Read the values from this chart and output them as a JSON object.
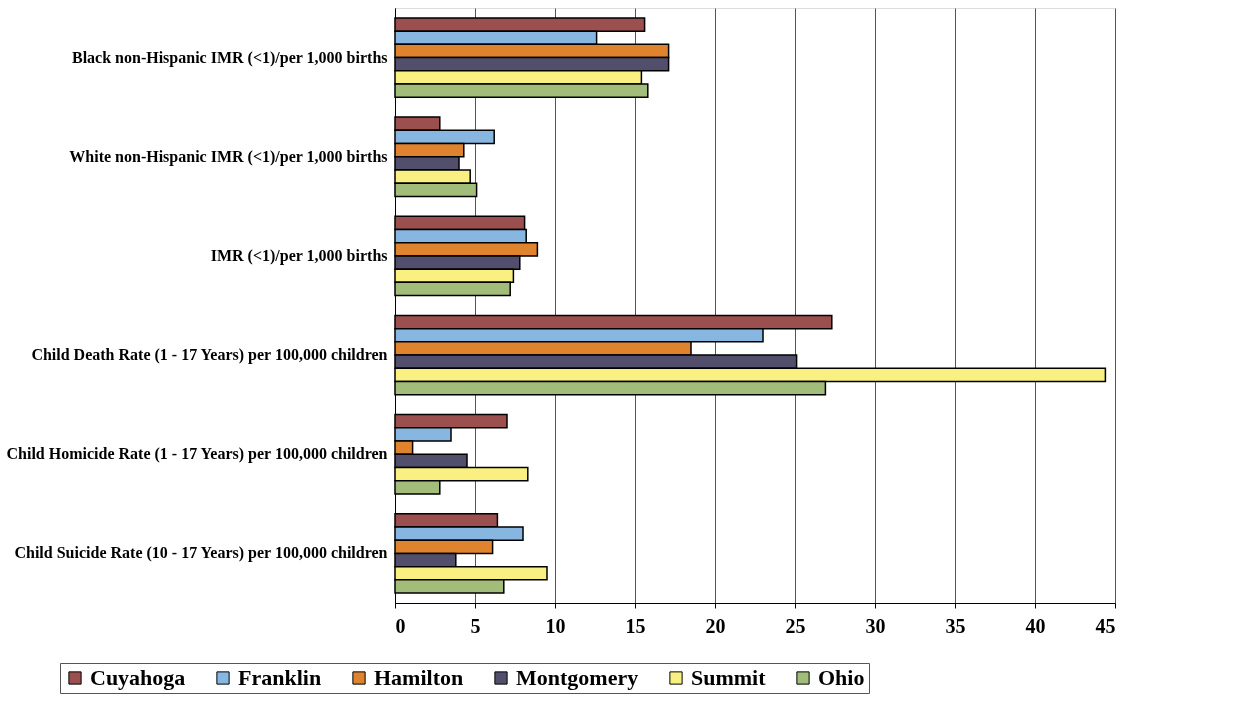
{
  "chart_data": {
    "type": "bar",
    "orientation": "horizontal",
    "categories": [
      "Black non-Hispanic IMR (<1)/per 1,000 births",
      "White non-Hispanic IMR (<1)/per 1,000 births",
      "IMR (<1)/per 1,000 births",
      "Child Death Rate (1 - 17 Years) per 100,000 children",
      "Child Homicide Rate (1 - 17 Years) per 100,000 children",
      "Child Suicide Rate (10 - 17 Years) per 100,000 children"
    ],
    "series": [
      {
        "name": "Cuyahoga",
        "color": "#9b4f4f",
        "values": [
          15.6,
          2.8,
          8.1,
          27.3,
          7.0,
          6.4
        ]
      },
      {
        "name": "Franklin",
        "color": "#87b7e0",
        "values": [
          12.6,
          6.2,
          8.2,
          23.0,
          3.5,
          8.0
        ]
      },
      {
        "name": "Hamilton",
        "color": "#e0832f",
        "values": [
          17.1,
          4.3,
          8.9,
          18.5,
          1.1,
          6.1
        ]
      },
      {
        "name": "Montgomery",
        "color": "#524f6c",
        "values": [
          17.1,
          4.0,
          7.8,
          25.1,
          4.5,
          3.8
        ]
      },
      {
        "name": "Summit",
        "color": "#faf082",
        "values": [
          15.4,
          4.7,
          7.4,
          44.4,
          8.3,
          9.5
        ]
      },
      {
        "name": "Ohio",
        "color": "#a2bd79",
        "values": [
          15.8,
          5.1,
          7.2,
          26.9,
          2.8,
          6.8
        ]
      }
    ],
    "xlim": [
      0,
      45
    ],
    "xticks": [
      0,
      5,
      10,
      15,
      20,
      25,
      30,
      35,
      40,
      45
    ],
    "grid": "x",
    "legend": "bottom"
  }
}
